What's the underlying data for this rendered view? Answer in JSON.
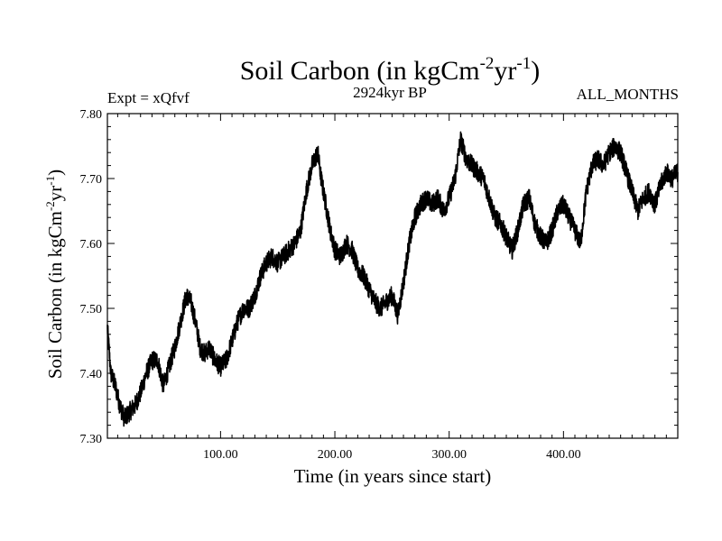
{
  "chart_data": {
    "type": "line",
    "title": "Soil Carbon (in kgCm",
    "title_sup1": "-2",
    "title_mid": "yr",
    "title_sup2": "-1",
    "title_end": ")",
    "subtitle_left": "Expt = xQfvf",
    "subtitle_center": "2924kyr BP",
    "subtitle_right": "ALL_MONTHS",
    "xlabel": "Time (in years since start)",
    "ylabel": "Soil Carbon (in kgCm",
    "ylabel_sup1": "-2",
    "ylabel_mid": "yr",
    "ylabel_sup2": "-1",
    "ylabel_end": ")",
    "xlim": [
      1,
      500
    ],
    "ylim": [
      7.3,
      7.8
    ],
    "x_ticks": [
      {
        "value": 100,
        "label": "100.00"
      },
      {
        "value": 200,
        "label": "200.00"
      },
      {
        "value": 300,
        "label": "300.00"
      },
      {
        "value": 400,
        "label": "400.00"
      }
    ],
    "y_ticks": [
      {
        "value": 7.3,
        "label": "7.30"
      },
      {
        "value": 7.4,
        "label": "7.40"
      },
      {
        "value": 7.5,
        "label": "7.50"
      },
      {
        "value": 7.6,
        "label": "7.60"
      },
      {
        "value": 7.7,
        "label": "7.70"
      },
      {
        "value": 7.8,
        "label": "7.80"
      }
    ],
    "series": [
      {
        "name": "Soil Carbon",
        "color": "#000000",
        "x": [
          1,
          4,
          8,
          12,
          16,
          20,
          25,
          30,
          35,
          40,
          45,
          50,
          55,
          60,
          65,
          70,
          74,
          78,
          82,
          86,
          90,
          95,
          100,
          105,
          110,
          115,
          120,
          125,
          130,
          135,
          140,
          145,
          150,
          155,
          160,
          165,
          170,
          175,
          180,
          185,
          188,
          192,
          196,
          200,
          205,
          210,
          215,
          220,
          225,
          230,
          235,
          240,
          245,
          250,
          255,
          260,
          265,
          270,
          275,
          280,
          285,
          290,
          295,
          300,
          305,
          310,
          315,
          320,
          325,
          330,
          335,
          340,
          345,
          350,
          355,
          360,
          365,
          370,
          375,
          380,
          385,
          390,
          395,
          400,
          405,
          410,
          415,
          420,
          425,
          430,
          435,
          440,
          445,
          450,
          455,
          460,
          465,
          470,
          475,
          480,
          485,
          490,
          495,
          500
        ],
        "values": [
          7.47,
          7.4,
          7.38,
          7.35,
          7.33,
          7.34,
          7.35,
          7.37,
          7.4,
          7.42,
          7.42,
          7.38,
          7.41,
          7.44,
          7.48,
          7.52,
          7.51,
          7.48,
          7.44,
          7.43,
          7.44,
          7.42,
          7.41,
          7.42,
          7.45,
          7.48,
          7.5,
          7.5,
          7.52,
          7.55,
          7.57,
          7.58,
          7.57,
          7.58,
          7.59,
          7.6,
          7.62,
          7.68,
          7.72,
          7.74,
          7.7,
          7.66,
          7.62,
          7.59,
          7.58,
          7.6,
          7.59,
          7.56,
          7.55,
          7.53,
          7.51,
          7.5,
          7.51,
          7.52,
          7.49,
          7.54,
          7.6,
          7.64,
          7.66,
          7.67,
          7.66,
          7.67,
          7.65,
          7.67,
          7.7,
          7.76,
          7.73,
          7.72,
          7.71,
          7.7,
          7.67,
          7.64,
          7.63,
          7.61,
          7.59,
          7.62,
          7.66,
          7.67,
          7.63,
          7.61,
          7.6,
          7.62,
          7.65,
          7.66,
          7.64,
          7.62,
          7.6,
          7.68,
          7.72,
          7.73,
          7.72,
          7.74,
          7.75,
          7.74,
          7.71,
          7.68,
          7.65,
          7.67,
          7.68,
          7.66,
          7.69,
          7.71,
          7.7,
          7.71
        ]
      }
    ]
  }
}
